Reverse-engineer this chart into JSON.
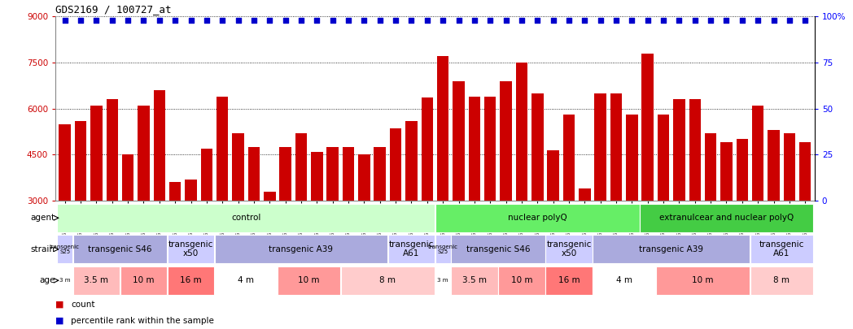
{
  "title": "GDS2169 / 100727_at",
  "samples": [
    "GSM73205",
    "GSM73208",
    "GSM73209",
    "GSM73212",
    "GSM73214",
    "GSM73216",
    "GSM73224",
    "GSM73217",
    "GSM73222",
    "GSM73223",
    "GSM73192",
    "GSM73196",
    "GSM73197",
    "GSM73200",
    "GSM73218",
    "GSM73221",
    "GSM73231",
    "GSM73186",
    "GSM73189",
    "GSM73191",
    "GSM73198",
    "GSM73199",
    "GSM73227",
    "GSM73228",
    "GSM73203",
    "GSM73204",
    "GSM73207",
    "GSM73211",
    "GSM73213",
    "GSM73215",
    "GSM73225",
    "GSM73201",
    "GSM73202",
    "GSM73206",
    "GSM73193",
    "GSM73194",
    "GSM73195",
    "GSM73219",
    "GSM73220",
    "GSM73232",
    "GSM73233",
    "GSM73187",
    "GSM73188",
    "GSM73190",
    "GSM73210",
    "GSM73226",
    "GSM73229",
    "GSM73230"
  ],
  "counts": [
    5500,
    5600,
    6100,
    6300,
    4500,
    6100,
    6600,
    3600,
    3700,
    4700,
    6400,
    5200,
    4750,
    3300,
    4750,
    5200,
    4600,
    4750,
    4750,
    4500,
    4750,
    5350,
    5600,
    6350,
    7700,
    6900,
    6400,
    6400,
    6900,
    7500,
    6500,
    4650,
    5800,
    3400,
    6500,
    6500,
    5800,
    7800,
    5800,
    6300,
    6300,
    5200,
    4900,
    5000,
    6100,
    5300,
    5200,
    4900
  ],
  "ymin": 3000,
  "ymax": 9000,
  "yticks": [
    3000,
    4500,
    6000,
    7500,
    9000
  ],
  "right_ytick_positions": [
    3000,
    4500,
    6000,
    7500,
    9000
  ],
  "right_ytick_labels": [
    "0",
    "25",
    "50",
    "75",
    "100%"
  ],
  "bar_color": "#cc0000",
  "dot_color": "#0000cc",
  "agent_groups": [
    {
      "label": "control",
      "start": 0,
      "end": 24,
      "color": "#ccffcc"
    },
    {
      "label": "nuclear polyQ",
      "start": 24,
      "end": 37,
      "color": "#66ee66"
    },
    {
      "label": "extranulcear and nuclear polyQ",
      "start": 37,
      "end": 48,
      "color": "#44cc44"
    }
  ],
  "strain_groups": [
    {
      "label": "transgenic\nS25",
      "start": 0,
      "end": 1,
      "color": "#ccccff"
    },
    {
      "label": "transgenic S46",
      "start": 1,
      "end": 7,
      "color": "#aaaadd"
    },
    {
      "label": "transgenic\nx50",
      "start": 7,
      "end": 10,
      "color": "#ccccff"
    },
    {
      "label": "transgenic A39",
      "start": 10,
      "end": 21,
      "color": "#aaaadd"
    },
    {
      "label": "transgenic\nA61",
      "start": 21,
      "end": 24,
      "color": "#ccccff"
    },
    {
      "label": "transgenic\nS25",
      "start": 24,
      "end": 25,
      "color": "#ccccff"
    },
    {
      "label": "transgenic S46",
      "start": 25,
      "end": 31,
      "color": "#aaaadd"
    },
    {
      "label": "transgenic\nx50",
      "start": 31,
      "end": 34,
      "color": "#ccccff"
    },
    {
      "label": "transgenic A39",
      "start": 34,
      "end": 44,
      "color": "#aaaadd"
    },
    {
      "label": "transgenic\nA61",
      "start": 44,
      "end": 48,
      "color": "#ccccff"
    }
  ],
  "age_groups": [
    {
      "label": "3 m",
      "start": 0,
      "end": 1,
      "color": "#ffffff"
    },
    {
      "label": "3.5 m",
      "start": 1,
      "end": 4,
      "color": "#ffbbbb"
    },
    {
      "label": "10 m",
      "start": 4,
      "end": 7,
      "color": "#ff9999"
    },
    {
      "label": "16 m",
      "start": 7,
      "end": 10,
      "color": "#ff7777"
    },
    {
      "label": "4 m",
      "start": 10,
      "end": 14,
      "color": "#ffffff"
    },
    {
      "label": "10 m",
      "start": 14,
      "end": 18,
      "color": "#ff9999"
    },
    {
      "label": "8 m",
      "start": 18,
      "end": 24,
      "color": "#ffcccc"
    },
    {
      "label": "3 m",
      "start": 24,
      "end": 25,
      "color": "#ffffff"
    },
    {
      "label": "3.5 m",
      "start": 25,
      "end": 28,
      "color": "#ffbbbb"
    },
    {
      "label": "10 m",
      "start": 28,
      "end": 31,
      "color": "#ff9999"
    },
    {
      "label": "16 m",
      "start": 31,
      "end": 34,
      "color": "#ff7777"
    },
    {
      "label": "4 m",
      "start": 34,
      "end": 38,
      "color": "#ffffff"
    },
    {
      "label": "10 m",
      "start": 38,
      "end": 44,
      "color": "#ff9999"
    },
    {
      "label": "8 m",
      "start": 44,
      "end": 48,
      "color": "#ffcccc"
    }
  ],
  "legend_count_color": "#cc0000",
  "legend_pct_color": "#0000cc",
  "tick_label_color": "#cc0000",
  "grid_color": "#000000",
  "spine_color": "#888888"
}
